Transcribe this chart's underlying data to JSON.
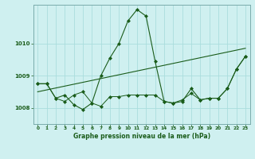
{
  "title": "Graphe pression niveau de la mer (hPa)",
  "background_color": "#cff0f0",
  "grid_color": "#aadddd",
  "line_color": "#1a5c1a",
  "xlim": [
    -0.5,
    23.5
  ],
  "ylim": [
    1007.5,
    1011.2
  ],
  "yticks": [
    1008,
    1009,
    1010
  ],
  "xticks": [
    0,
    1,
    2,
    3,
    4,
    5,
    6,
    7,
    8,
    9,
    10,
    11,
    12,
    13,
    14,
    15,
    16,
    17,
    18,
    19,
    20,
    21,
    22,
    23
  ],
  "series1_x": [
    0,
    1,
    2,
    3,
    4,
    5,
    6,
    7,
    8,
    9,
    10,
    11,
    12,
    13,
    14,
    15,
    16,
    17,
    18,
    19,
    20,
    21,
    22,
    23
  ],
  "series1_y": [
    1008.75,
    1008.75,
    1008.3,
    1008.4,
    1008.1,
    1007.95,
    1008.15,
    1009.0,
    1009.55,
    1010.0,
    1010.7,
    1011.05,
    1010.85,
    1009.45,
    1008.2,
    1008.15,
    1008.2,
    1008.6,
    1008.25,
    1008.3,
    1008.3,
    1008.6,
    1009.2,
    1009.6
  ],
  "series2_x": [
    0,
    1,
    2,
    3,
    4,
    5,
    6,
    7,
    8,
    9,
    10,
    11,
    12,
    13,
    14,
    15,
    16,
    17,
    18,
    19,
    20,
    21,
    22,
    23
  ],
  "series2_y": [
    1008.75,
    1008.75,
    1008.3,
    1008.2,
    1008.4,
    1008.5,
    1008.15,
    1008.05,
    1008.35,
    1008.35,
    1008.4,
    1008.4,
    1008.4,
    1008.4,
    1008.2,
    1008.15,
    1008.25,
    1008.45,
    1008.25,
    1008.3,
    1008.3,
    1008.6,
    1009.2,
    1009.6
  ],
  "trend_x": [
    0,
    23
  ],
  "trend_y": [
    1008.5,
    1009.85
  ]
}
